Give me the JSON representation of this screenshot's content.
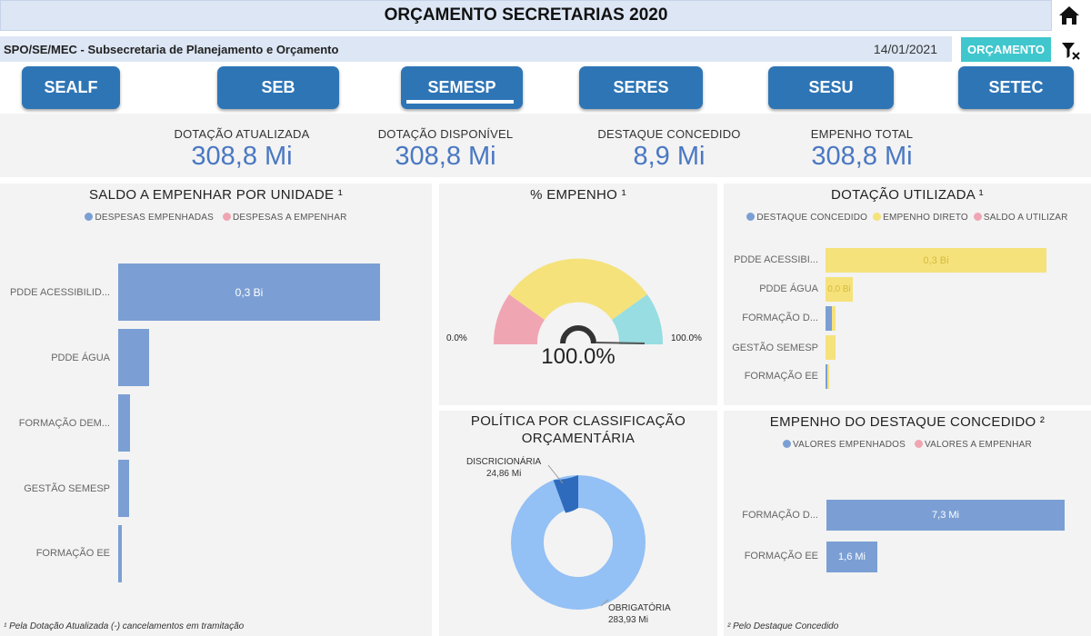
{
  "header": {
    "title": "ORÇAMENTO SECRETARIAS 2020",
    "subtitle": "SPO/SE/MEC - Subsecretaria de Planejamento e Orçamento",
    "date": "14/01/2021",
    "orcamento_button": "ORÇAMENTO"
  },
  "nav": {
    "buttons": [
      "SEALF",
      "SEB",
      "SEMESP",
      "SERES",
      "SESU",
      "SETEC"
    ],
    "active": "SEMESP"
  },
  "kpis": [
    {
      "label": "DOTAÇÃO ATUALIZADA",
      "value": "308,8 Mi"
    },
    {
      "label": "DOTAÇÃO DISPONÍVEL",
      "value": "308,8 Mi"
    },
    {
      "label": "DESTAQUE CONCEDIDO",
      "value": "8,9 Mi"
    },
    {
      "label": "EMPENHO TOTAL",
      "value": "308,8 Mi"
    }
  ],
  "saldo_chart": {
    "title": "SALDO A EMPENHAR POR UNIDADE ¹",
    "legend": [
      "DESPESAS EMPENHADAS",
      "DESPESAS A EMPENHAR"
    ],
    "categories": [
      "PDDE ACESSIBILID...",
      "PDDE ÁGUA",
      "FORMAÇÃO DEM...",
      "GESTÃO SEMESP",
      "FORMAÇÃO EE"
    ],
    "bar_label": "0,3 Bi",
    "footnote": "¹ Pela Dotação Atualizada (-) cancelamentos em tramitação"
  },
  "gauge": {
    "title": "% EMPENHO ¹",
    "min_label": "0.0%",
    "max_label": "100.0%",
    "value_label": "100.0%"
  },
  "dotacao_chart": {
    "title": "DOTAÇÃO UTILIZADA ¹",
    "legend": [
      "DESTAQUE CONCEDIDO",
      "EMPENHO DIRETO",
      "SALDO A UTILIZAR"
    ],
    "categories": [
      "PDDE ACESSIBI...",
      "PDDE ÁGUA",
      "FORMAÇÃO D...",
      "GESTÃO SEMESP",
      "FORMAÇÃO EE"
    ],
    "labels": [
      "0,3 Bi",
      "0,0 Bi"
    ]
  },
  "politica_chart": {
    "title_line1": "POLÍTICA POR CLASSIFICAÇÃO",
    "title_line2": "ORÇAMENTÁRIA",
    "slices": [
      {
        "name": "DISCRICIONÁRIA",
        "label": "24,86 Mi"
      },
      {
        "name": "OBRIGATÓRIA",
        "label": "283,93 Mi"
      }
    ]
  },
  "empenho_destaque_chart": {
    "title": "EMPENHO DO DESTAQUE CONCEDIDO ²",
    "legend": [
      "VALORES EMPENHADOS",
      "VALORES A EMPENHAR"
    ],
    "categories": [
      "FORMAÇÃO D...",
      "FORMAÇÃO EE"
    ],
    "labels": [
      "7,3 Mi",
      "1,6 Mi"
    ],
    "footnote": "² Pelo Destaque Concedido"
  },
  "chart_data": [
    {
      "type": "bar",
      "title": "SALDO A EMPENHAR POR UNIDADE ¹",
      "orientation": "horizontal",
      "categories": [
        "PDDE ACESSIBILID...",
        "PDDE ÁGUA",
        "FORMAÇÃO DEM...",
        "GESTÃO SEMESP",
        "FORMAÇÃO EE"
      ],
      "series": [
        {
          "name": "DESPESAS EMPENHADAS",
          "values": [
            0.3,
            0.035,
            0.014,
            0.013,
            0.005
          ]
        }
      ],
      "unit": "Bi"
    },
    {
      "type": "bar",
      "title": "DOTAÇÃO UTILIZADA ¹",
      "orientation": "horizontal",
      "categories": [
        "PDDE ACESSIBI...",
        "PDDE ÁGUA",
        "FORMAÇÃO D...",
        "GESTÃO SEMESP",
        "FORMAÇÃO EE"
      ],
      "series": [
        {
          "name": "DESTAQUE CONCEDIDO",
          "values": [
            0,
            0,
            0.0073,
            0,
            0.0016
          ]
        },
        {
          "name": "EMPENHO DIRETO",
          "values": [
            0.3,
            0.035,
            0.005,
            0.013,
            0.002
          ]
        }
      ],
      "unit": "Bi"
    },
    {
      "type": "pie",
      "title": "POLÍTICA POR CLASSIFICAÇÃO ORÇAMENTÁRIA",
      "categories": [
        "DISCRICIONÁRIA",
        "OBRIGATÓRIA"
      ],
      "values": [
        24.86,
        283.93
      ],
      "unit": "Mi"
    },
    {
      "type": "bar",
      "title": "EMPENHO DO DESTAQUE CONCEDIDO ²",
      "orientation": "horizontal",
      "categories": [
        "FORMAÇÃO D...",
        "FORMAÇÃO EE"
      ],
      "series": [
        {
          "name": "VALORES EMPENHADOS",
          "values": [
            7.3,
            1.6
          ]
        }
      ],
      "unit": "Mi"
    }
  ],
  "colors": {
    "nav": "#2e75b6",
    "accent": "#3fc7cd",
    "bar_blue": "#7b9fd4",
    "bar_yellow": "#f5e27b",
    "pink": "#f0a5b3",
    "cyan": "#97dde2",
    "dark_blue": "#2e6bbd",
    "light_blue": "#93c0f5"
  },
  "icons": {
    "home": "home-icon",
    "clear_filter": "clear-filter-icon"
  }
}
